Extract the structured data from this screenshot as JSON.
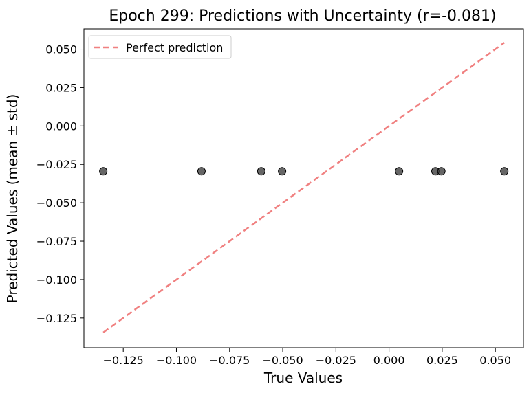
{
  "chart_data": {
    "type": "scatter",
    "title": "Epoch 299: Predictions with Uncertainty (r=-0.081)",
    "xlabel": "True Values",
    "ylabel": "Predicted Values (mean ± std)",
    "xlim": [
      -0.1435,
      0.0632
    ],
    "ylim": [
      -0.1443,
      0.0632
    ],
    "xticks": [
      -0.125,
      -0.1,
      -0.075,
      -0.05,
      -0.025,
      0.0,
      0.025,
      0.05
    ],
    "xtick_labels": [
      "−0.125",
      "−0.100",
      "−0.075",
      "−0.050",
      "−0.025",
      "0.000",
      "0.025",
      "0.050"
    ],
    "yticks": [
      -0.125,
      -0.1,
      -0.075,
      -0.05,
      -0.025,
      0.0,
      0.025,
      0.05
    ],
    "ytick_labels": [
      "−0.125",
      "−0.100",
      "−0.075",
      "−0.050",
      "−0.025",
      "0.000",
      "0.025",
      "0.050"
    ],
    "points": [
      {
        "x": -0.1344,
        "y": -0.0295
      },
      {
        "x": -0.0882,
        "y": -0.0295
      },
      {
        "x": -0.0601,
        "y": -0.0295
      },
      {
        "x": -0.0503,
        "y": -0.0295
      },
      {
        "x": 0.0047,
        "y": -0.0295
      },
      {
        "x": 0.0218,
        "y": -0.0295
      },
      {
        "x": 0.0246,
        "y": -0.0295
      },
      {
        "x": 0.0542,
        "y": -0.0295
      }
    ],
    "reference_line": {
      "name": "Perfect prediction",
      "x": [
        -0.1344,
        0.0542
      ],
      "y": [
        -0.1344,
        0.0542
      ],
      "color": "#f08080",
      "style": "dashed"
    },
    "point_color": "#404040",
    "legend": {
      "entries": [
        "Perfect prediction"
      ],
      "placement": "upper-left"
    },
    "grid": false
  }
}
